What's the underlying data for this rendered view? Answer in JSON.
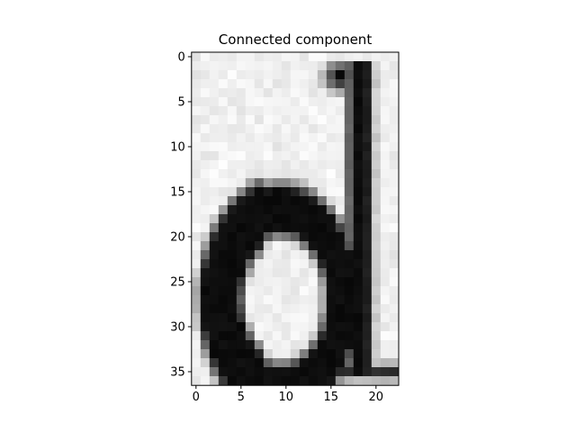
{
  "chart_data": {
    "type": "heatmap",
    "title": "Connected component",
    "xlabel": "",
    "ylabel": "",
    "cols": 23,
    "rows": 37,
    "xlim": [
      -0.5,
      22.5
    ],
    "ylim": [
      36.5,
      -0.5
    ],
    "xticks": [
      0,
      5,
      10,
      15,
      20
    ],
    "yticks": [
      0,
      5,
      10,
      15,
      20,
      25,
      30,
      35
    ],
    "colormap": "gray",
    "grid": false,
    "glyph": "d",
    "stroke_width_px": 2.2,
    "bowl": {
      "cx": 9.5,
      "cy": 27.0,
      "rx": 6.8,
      "ry": 10.0,
      "ring_half_width": 1.4
    },
    "stem": {
      "x_start": 17.5,
      "x_end": 18.9,
      "y_start": 1.5,
      "y_end": 35.5
    },
    "top_serif": {
      "cx": 16.0,
      "cy": 2.2,
      "rx": 2.0,
      "ry": 1.8
    },
    "bottom_bar": {
      "y": 35.0,
      "x_start": 14.5,
      "x_end": 22.5
    },
    "background_gray_min": 0.9,
    "background_gray_max": 0.98,
    "ink_gray_min": 0.05
  }
}
